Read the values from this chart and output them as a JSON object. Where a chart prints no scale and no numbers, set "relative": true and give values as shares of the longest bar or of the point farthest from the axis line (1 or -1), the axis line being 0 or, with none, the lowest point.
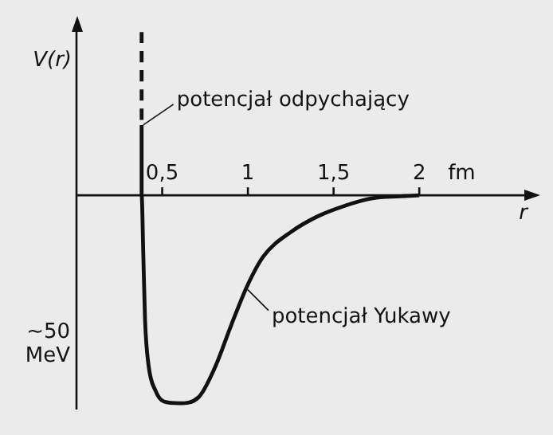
{
  "chart_data": {
    "type": "line",
    "xlabel": "r",
    "ylabel": "V(r)",
    "relative": true,
    "xlim": [
      0,
      2.65
    ],
    "xticks": [
      {
        "value": 0.5,
        "label": "0,5"
      },
      1,
      {
        "value": 1.5,
        "label": "1,5"
      },
      2
    ],
    "legend": false,
    "marker": "none",
    "grid": false,
    "series": [
      {
        "color": "#111111",
        "line_style": "dashed",
        "x": [
          0.38,
          0.38
        ],
        "values": [
          0.785,
          0.338
        ]
      },
      {
        "color": "#111111",
        "line_style": "solid",
        "x": [
          0.38,
          0.38,
          0.39,
          0.4,
          0.42,
          0.46,
          0.51,
          0.6,
          0.711,
          0.806,
          0.902,
          0.997,
          1.092,
          1.25,
          1.41,
          1.57,
          1.72,
          1.89,
          2.0
        ],
        "values": [
          0.338,
          0,
          -0.292,
          -0.6,
          -0.815,
          -0.938,
          -0.992,
          -1,
          -0.972,
          -0.831,
          -0.626,
          -0.434,
          -0.292,
          -0.177,
          -0.1,
          -0.049,
          -0.015,
          -0.005,
          0
        ]
      }
    ],
    "annotations": [
      {
        "text": "potencjał odpychający",
        "x": 0.38,
        "y": 0.338
      },
      {
        "text": "potencjał Yukawy",
        "x": 0.99,
        "y": -0.431
      },
      "fm",
      "~50 MeV"
    ]
  }
}
